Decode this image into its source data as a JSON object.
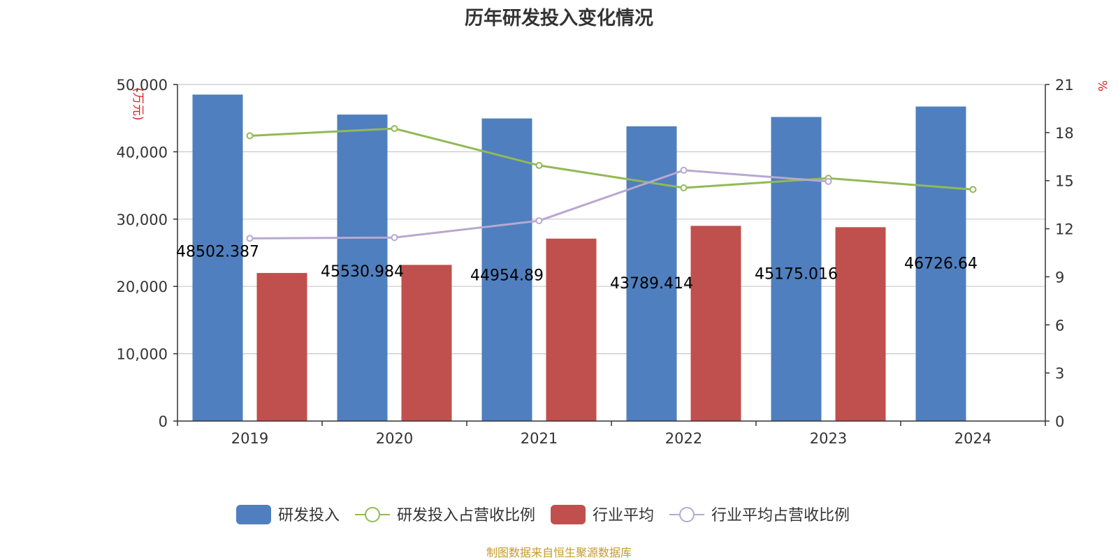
{
  "chart_data": {
    "type": "bar",
    "title": "历年研发投入变化情况",
    "categories": [
      "2019",
      "2020",
      "2021",
      "2022",
      "2023",
      "2024"
    ],
    "y_left": {
      "unit_label": "万元",
      "range": [
        0,
        50000
      ],
      "ticks": [
        0,
        10000,
        20000,
        30000,
        40000,
        50000
      ]
    },
    "y_right": {
      "unit_label": "%",
      "range": [
        0,
        21
      ],
      "ticks": [
        0,
        3,
        6,
        9,
        12,
        15,
        18,
        21
      ]
    },
    "grid": true,
    "legend_position": "bottom",
    "series": [
      {
        "name": "研发投入",
        "type": "bar",
        "axis": "left",
        "color": "#4f7fbe",
        "values": [
          48502.387,
          45530.984,
          44954.89,
          43789.414,
          45175.016,
          46726.64
        ],
        "labels": [
          "48502.387",
          "45530.984",
          "44954.89",
          "43789.414",
          "45175.016",
          "46726.64"
        ]
      },
      {
        "name": "研发投入占营收比例",
        "type": "line",
        "axis": "right",
        "color": "#92b957",
        "values": [
          17.8,
          18.25,
          15.95,
          14.55,
          15.15,
          14.45
        ]
      },
      {
        "name": "行业平均",
        "type": "bar",
        "axis": "left",
        "color": "#c0504d",
        "values": [
          22000,
          23200,
          27100,
          29000,
          28800,
          null
        ]
      },
      {
        "name": "行业平均占营收比例",
        "type": "line",
        "axis": "right",
        "color": "#b7a8d0",
        "values": [
          11.4,
          11.45,
          12.5,
          15.65,
          14.95,
          null
        ]
      }
    ]
  },
  "source": "制图数据来自恒生聚源数据库"
}
